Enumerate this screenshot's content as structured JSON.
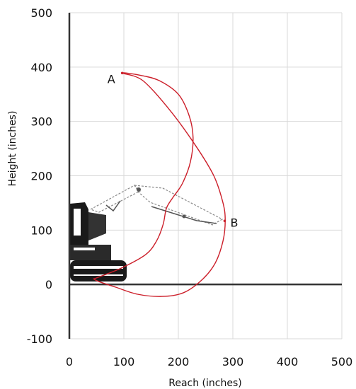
{
  "chart_data": {
    "type": "line",
    "title": "",
    "xlabel": "Reach (inches)",
    "ylabel": "Height (inches)",
    "xlim": [
      0,
      500
    ],
    "ylim": [
      -100,
      500
    ],
    "x_ticks": [
      "0",
      "100",
      "200",
      "300",
      "400",
      "500"
    ],
    "y_ticks": [
      "500",
      "400",
      "300",
      "200",
      "100",
      "0",
      "-100"
    ],
    "x_tick_values": [
      0,
      100,
      200,
      300,
      400,
      500
    ],
    "y_tick_values": [
      500,
      400,
      300,
      200,
      100,
      0,
      -100
    ],
    "grid": true,
    "colors": {
      "envelope": "#cc1f2a",
      "grid": "#d9d9d9",
      "axis": "#333333",
      "machine": "#1a1a1a"
    },
    "machine_icon": "excavator-silhouette",
    "points": [
      {
        "label": "A",
        "x": 97,
        "y": 389
      },
      {
        "label": "B",
        "x": 285,
        "y": 117
      }
    ],
    "series": [
      {
        "values": [
          [
            97,
            389
          ],
          [
            135,
            375
          ],
          [
            185,
            320
          ],
          [
            232,
            255
          ],
          [
            265,
            200
          ],
          [
            282,
            150
          ],
          [
            286,
            117
          ],
          [
            282,
            80
          ],
          [
            268,
            40
          ],
          [
            245,
            10
          ],
          [
            210,
            -15
          ],
          [
            170,
            -22
          ],
          [
            125,
            -18
          ],
          [
            85,
            -5
          ],
          [
            55,
            5
          ],
          [
            45,
            10
          ],
          [
            50,
            12
          ],
          [
            95,
            30
          ],
          [
            140,
            55
          ],
          [
            160,
            80
          ],
          [
            172,
            110
          ],
          [
            178,
            140
          ],
          [
            190,
            160
          ],
          [
            207,
            185
          ],
          [
            222,
            225
          ],
          [
            227,
            270
          ],
          [
            220,
            310
          ],
          [
            200,
            350
          ],
          [
            165,
            375
          ],
          [
            130,
            385
          ],
          [
            97,
            389
          ]
        ]
      }
    ]
  }
}
